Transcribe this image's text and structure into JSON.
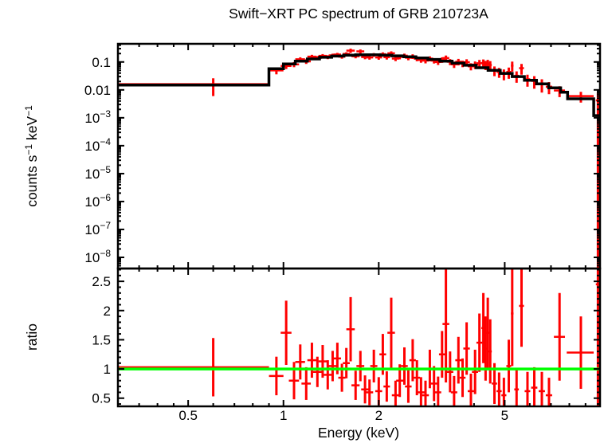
{
  "title": "Swift−XRT PC spectrum of GRB 210723A",
  "axes": {
    "x_label": "Energy (keV)",
    "ratio_label": "ratio",
    "counts_label_parts": [
      {
        "t": "counts s",
        "sup": false
      },
      {
        "t": "−1",
        "sup": true
      },
      {
        "t": " keV",
        "sup": false
      },
      {
        "t": "−1",
        "sup": true
      }
    ]
  },
  "chart_data": {
    "type": "scatter",
    "title": "Swift−XRT PC spectrum of GRB 210723A",
    "x_axis": {
      "label": "Energy (keV)",
      "scale": "log",
      "range": [
        0.3,
        10
      ],
      "major_ticks": [
        {
          "v": 0.5,
          "l": "0.5"
        },
        {
          "v": 1,
          "l": "1"
        },
        {
          "v": 2,
          "l": "2"
        },
        {
          "v": 5,
          "l": "5"
        }
      ],
      "minor_ticks": [
        0.35,
        0.4,
        0.45,
        0.6,
        0.7,
        0.8,
        0.9,
        3,
        4,
        6,
        7,
        8,
        9
      ]
    },
    "panels": [
      {
        "id": "spectrum",
        "ylabel": "counts s^-1 keV^-1",
        "yscale": "log",
        "ylog10_range": [
          -8.4,
          -0.35
        ],
        "ytick_labels": [
          {
            "v": 0.1,
            "l": "0.1"
          },
          {
            "v": 0.01,
            "l": "0.01"
          },
          {
            "v": 0.001,
            "l": "10^−3"
          },
          {
            "v": 0.0001,
            "l": "10^−4"
          },
          {
            "v": 1e-05,
            "l": "10^−5"
          },
          {
            "v": 1e-06,
            "l": "10^−6"
          },
          {
            "v": 1e-07,
            "l": "10^−7"
          },
          {
            "v": 1e-08,
            "l": "10^−8"
          }
        ]
      },
      {
        "id": "ratio",
        "ylabel": "ratio",
        "yscale": "linear",
        "yrange": [
          0.36,
          2.72
        ],
        "ytick_labels": [
          {
            "v": 0.5,
            "l": "0.5"
          },
          {
            "v": 1,
            "l": "1"
          },
          {
            "v": 1.5,
            "l": "1.5"
          },
          {
            "v": 2,
            "l": "2"
          },
          {
            "v": 2.5,
            "l": "2.5"
          }
        ],
        "reference_line": 1.0
      }
    ],
    "series": {
      "model_edges": [
        0.3,
        0.9,
        1.0,
        1.09,
        1.19,
        1.3,
        1.42,
        1.55,
        1.69,
        1.85,
        2.02,
        2.2,
        2.4,
        2.62,
        2.86,
        3.12,
        3.41,
        3.72,
        4.06,
        4.43,
        4.84,
        5.28,
        5.77,
        6.3,
        6.88,
        7.51,
        7.9,
        9.55,
        10.0
      ],
      "model_values": [
        0.0148,
        0.057,
        0.085,
        0.107,
        0.128,
        0.147,
        0.162,
        0.174,
        0.18,
        0.18,
        0.175,
        0.166,
        0.154,
        0.139,
        0.123,
        0.107,
        0.091,
        0.076,
        0.062,
        0.05,
        0.039,
        0.03,
        0.022,
        0.0165,
        0.0118,
        0.0082,
        0.0048,
        0.0012
      ],
      "points_format": [
        "energy_keV",
        "half_width_keV",
        "counts",
        "counts_err",
        "ratio",
        "ratio_err"
      ],
      "points": [
        [
          0.6,
          0.3,
          0.016,
          0.01,
          1.03,
          0.5
        ],
        [
          0.95,
          0.05,
          0.05,
          0.014,
          0.88,
          0.33
        ],
        [
          1.02,
          0.04,
          0.072,
          0.016,
          1.62,
          0.55
        ],
        [
          1.08,
          0.04,
          0.082,
          0.017,
          0.8,
          0.32
        ],
        [
          1.13,
          0.04,
          0.125,
          0.022,
          1.12,
          0.3
        ],
        [
          1.18,
          0.04,
          0.105,
          0.02,
          0.75,
          0.28
        ],
        [
          1.23,
          0.04,
          0.155,
          0.025,
          1.15,
          0.3
        ],
        [
          1.28,
          0.04,
          0.14,
          0.023,
          0.95,
          0.26
        ],
        [
          1.33,
          0.04,
          0.165,
          0.026,
          1.13,
          0.28
        ],
        [
          1.38,
          0.04,
          0.15,
          0.024,
          0.9,
          0.25
        ],
        [
          1.43,
          0.04,
          0.172,
          0.026,
          1.05,
          0.26
        ],
        [
          1.48,
          0.04,
          0.185,
          0.027,
          1.18,
          0.27
        ],
        [
          1.53,
          0.04,
          0.155,
          0.024,
          0.85,
          0.24
        ],
        [
          1.58,
          0.04,
          0.195,
          0.028,
          1.1,
          0.26
        ],
        [
          1.63,
          0.05,
          0.255,
          0.045,
          1.68,
          0.55
        ],
        [
          1.69,
          0.05,
          0.16,
          0.025,
          0.72,
          0.25
        ],
        [
          1.75,
          0.05,
          0.24,
          0.04,
          1.05,
          0.26
        ],
        [
          1.81,
          0.05,
          0.15,
          0.025,
          0.65,
          0.24
        ],
        [
          1.87,
          0.05,
          0.145,
          0.024,
          0.6,
          0.22
        ],
        [
          1.93,
          0.05,
          0.18,
          0.028,
          1.05,
          0.28
        ],
        [
          2.0,
          0.05,
          0.145,
          0.025,
          0.62,
          0.24
        ],
        [
          2.06,
          0.05,
          0.19,
          0.031,
          1.25,
          0.35
        ],
        [
          2.12,
          0.05,
          0.148,
          0.026,
          0.7,
          0.26
        ],
        [
          2.19,
          0.06,
          0.205,
          0.035,
          1.62,
          0.6
        ],
        [
          2.26,
          0.06,
          0.132,
          0.025,
          0.55,
          0.25
        ],
        [
          2.33,
          0.06,
          0.152,
          0.028,
          0.8,
          0.28
        ],
        [
          2.41,
          0.06,
          0.168,
          0.031,
          1.05,
          0.32
        ],
        [
          2.48,
          0.06,
          0.142,
          0.027,
          0.7,
          0.28
        ],
        [
          2.56,
          0.06,
          0.158,
          0.03,
          1.15,
          0.36
        ],
        [
          2.64,
          0.06,
          0.132,
          0.026,
          0.85,
          0.3
        ],
        [
          2.72,
          0.07,
          0.118,
          0.024,
          0.6,
          0.26
        ],
        [
          2.81,
          0.07,
          0.112,
          0.023,
          0.55,
          0.25
        ],
        [
          2.9,
          0.07,
          0.132,
          0.027,
          1.0,
          0.33
        ],
        [
          2.99,
          0.07,
          0.112,
          0.024,
          0.75,
          0.3
        ],
        [
          3.08,
          0.07,
          0.1,
          0.022,
          0.6,
          0.27
        ],
        [
          3.17,
          0.07,
          0.12,
          0.027,
          1.25,
          0.4
        ],
        [
          3.26,
          0.08,
          0.138,
          0.032,
          1.77,
          1.0
        ],
        [
          3.36,
          0.08,
          0.102,
          0.025,
          0.95,
          0.35
        ],
        [
          3.46,
          0.08,
          0.082,
          0.021,
          0.6,
          0.28
        ],
        [
          3.57,
          0.08,
          0.102,
          0.027,
          1.15,
          0.4
        ],
        [
          3.68,
          0.08,
          0.088,
          0.023,
          0.85,
          0.33
        ],
        [
          3.79,
          0.09,
          0.098,
          0.027,
          1.35,
          0.45
        ],
        [
          3.91,
          0.09,
          0.07,
          0.02,
          0.62,
          0.3
        ],
        [
          4.03,
          0.09,
          0.08,
          0.024,
          0.95,
          0.38
        ],
        [
          4.16,
          0.09,
          0.09,
          0.028,
          1.45,
          0.5
        ],
        [
          4.28,
          0.06,
          0.092,
          0.031,
          1.7,
          0.6
        ],
        [
          4.35,
          0.05,
          0.08,
          0.029,
          1.35,
          0.55
        ],
        [
          4.42,
          0.05,
          0.088,
          0.031,
          1.62,
          0.6
        ],
        [
          4.5,
          0.05,
          0.078,
          0.029,
          1.3,
          0.55
        ],
        [
          4.64,
          0.09,
          0.05,
          0.019,
          0.75,
          0.35
        ],
        [
          4.8,
          0.09,
          0.044,
          0.017,
          0.62,
          0.32
        ],
        [
          4.97,
          0.09,
          0.038,
          0.016,
          0.55,
          0.3
        ],
        [
          5.15,
          0.09,
          0.044,
          0.019,
          1.05,
          0.45
        ],
        [
          5.28,
          0.05,
          0.074,
          0.029,
          1.95,
          0.9
        ],
        [
          5.45,
          0.09,
          0.032,
          0.014,
          0.65,
          0.35
        ],
        [
          5.65,
          0.1,
          0.06,
          0.025,
          2.08,
          0.7
        ],
        [
          5.9,
          0.12,
          0.024,
          0.011,
          0.62,
          0.33
        ],
        [
          6.2,
          0.14,
          0.021,
          0.01,
          0.68,
          0.35
        ],
        [
          6.55,
          0.15,
          0.016,
          0.008,
          0.62,
          0.33
        ],
        [
          6.9,
          0.16,
          0.013,
          0.006,
          0.55,
          0.3
        ],
        [
          7.45,
          0.3,
          0.0095,
          0.004,
          1.55,
          0.75
        ],
        [
          8.7,
          0.85,
          0.006,
          0.0025,
          1.28,
          0.62
        ],
        [
          9.85,
          0.15,
          0.0042,
          0.004,
          2.45,
          1.9
        ]
      ],
      "final_bin_lower_to_edge": true
    },
    "legend": "none",
    "grid": false,
    "colors": {
      "data": "#ff0000",
      "model": "#000000",
      "reference": "#00ff00",
      "frame": "#000000",
      "background": "#ffffff"
    }
  }
}
